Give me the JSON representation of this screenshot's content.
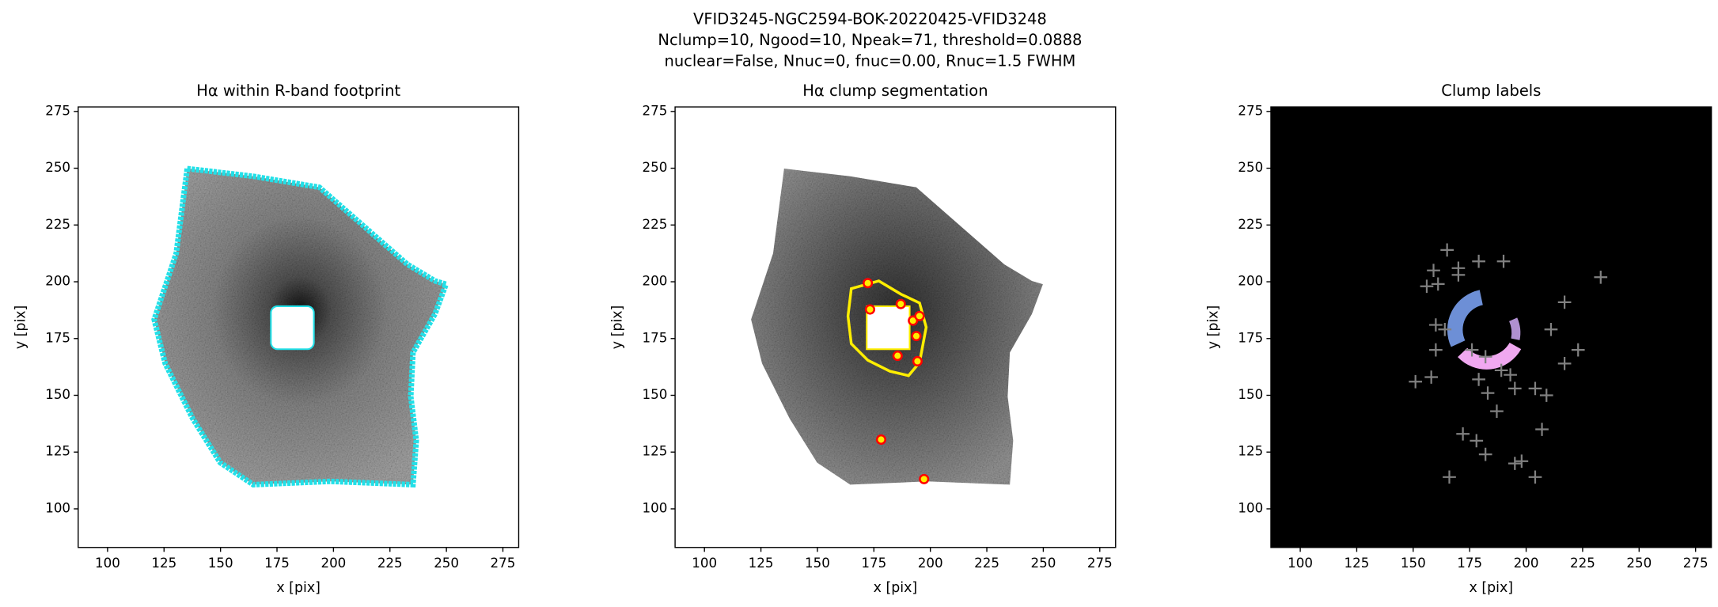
{
  "suptitle": [
    "VFID3245-NGC2594-BOK-20220425-VFID3248",
    "Nclump=10, Ngood=10, Npeak=71, threshold=0.0888",
    "nuclear=False, Nnuc=0, fnuc=0.00, Rnuc=1.5 FWHM"
  ],
  "chart_data": [
    {
      "type": "image",
      "title": "Hα within R-band footprint",
      "xlabel": "x [pix]",
      "ylabel": "y [pix]",
      "xlim": [
        87,
        282
      ],
      "ylim": [
        83,
        277
      ],
      "xticks": [
        100,
        125,
        150,
        175,
        200,
        225,
        250,
        275
      ],
      "yticks": [
        100,
        125,
        150,
        175,
        200,
        225,
        250,
        275
      ]
    },
    {
      "type": "scatter",
      "title": "Hα clump segmentation",
      "xlabel": "x [pix]",
      "ylabel": "y [pix]",
      "xlim": [
        87,
        282
      ],
      "ylim": [
        83,
        277
      ],
      "xticks": [
        100,
        125,
        150,
        175,
        200,
        225,
        250,
        275
      ],
      "yticks": [
        100,
        125,
        150,
        175,
        200,
        225,
        250,
        275
      ],
      "color": "#ff0000",
      "x": [
        172.3,
        186.9,
        173.3,
        192.3,
        195.2,
        193.8,
        185.5,
        194.3,
        178.2,
        197.2
      ],
      "values": [
        199.4,
        190.2,
        187.8,
        182.9,
        184.9,
        176.1,
        167.4,
        165.0,
        130.5,
        113.1
      ]
    },
    {
      "type": "scatter",
      "title": "Clump labels",
      "xlabel": "x [pix]",
      "ylabel": "y [pix]",
      "xlim": [
        87,
        282
      ],
      "ylim": [
        83,
        277
      ],
      "xticks": [
        100,
        125,
        150,
        175,
        200,
        225,
        250,
        275
      ],
      "yticks": [
        100,
        125,
        150,
        175,
        200,
        225,
        250,
        275
      ],
      "color": "#808080",
      "x": [
        165,
        159,
        161,
        156,
        170,
        170,
        179,
        190,
        233,
        217,
        160,
        164,
        160,
        176,
        211,
        223,
        217,
        182,
        189,
        179,
        193,
        183,
        195,
        204,
        209,
        187,
        151,
        158,
        172,
        178,
        182,
        195,
        207,
        198,
        204,
        166
      ],
      "values": [
        214,
        205,
        199,
        198,
        206,
        203,
        209,
        209,
        202,
        191,
        181,
        179,
        170,
        170,
        179,
        170,
        164,
        167,
        161,
        157,
        159,
        151,
        153,
        153,
        150,
        143,
        156,
        158,
        133,
        130,
        124,
        120,
        135,
        121,
        114,
        114
      ]
    }
  ]
}
